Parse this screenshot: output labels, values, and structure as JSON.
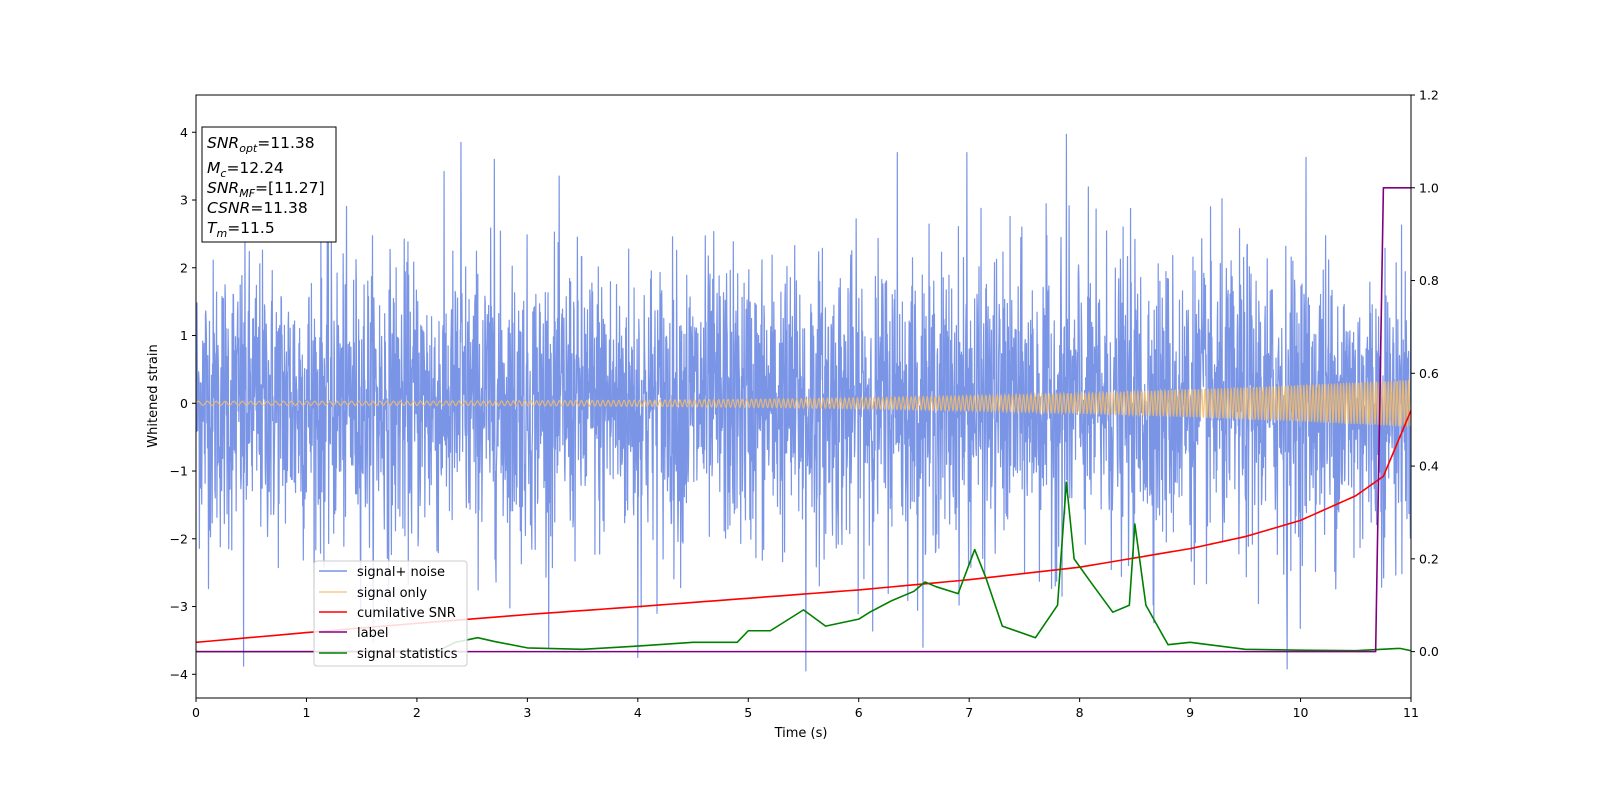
{
  "chart_data": {
    "type": "line",
    "xlabel": "Time (s)",
    "ylabel": "Whitened strain",
    "xlim": [
      0,
      11
    ],
    "ylim_left": [
      -4.35,
      4.55
    ],
    "ylim_right": [
      -0.1,
      1.2
    ],
    "x_ticks": [
      "0",
      "1",
      "2",
      "3",
      "4",
      "5",
      "6",
      "7",
      "8",
      "9",
      "10",
      "11"
    ],
    "y_ticks_left": [
      "4",
      "3",
      "2",
      "1",
      "0",
      "−1",
      "−2",
      "−3",
      "−4"
    ],
    "y_ticks_right": [
      "1.2",
      "1.0",
      "0.8",
      "0.6",
      "0.4",
      "0.2",
      "0.0"
    ],
    "grid": false,
    "legend_position": "lower-left",
    "annotation": {
      "snr_opt": {
        "main": "SNR",
        "sub": "opt",
        "value": "=11.38"
      },
      "mc": {
        "main": "M",
        "sub": "c",
        "value": "=12.24"
      },
      "snr_mf": {
        "main": "SNR",
        "sub": "MF",
        "value": "=[11.27]"
      },
      "csnr": {
        "main": "CSNR",
        "value": "=11.38"
      },
      "tm": {
        "main": "T",
        "sub": "m",
        "value": "=11.5"
      }
    },
    "series": [
      {
        "name": "signal+ noise",
        "axis": "left",
        "color": "#7a94e6",
        "noise_std": 1.0,
        "x_range": [
          0,
          11
        ],
        "extremes": [
          {
            "x": 0.43,
            "y": -3.88
          },
          {
            "x": 2.4,
            "y": 3.85
          },
          {
            "x": 2.7,
            "y": 3.6
          },
          {
            "x": 4.0,
            "y": -3.75
          },
          {
            "x": 5.52,
            "y": -3.95
          },
          {
            "x": 6.35,
            "y": 3.7
          },
          {
            "x": 6.98,
            "y": 3.7
          },
          {
            "x": 7.88,
            "y": 3.97
          },
          {
            "x": 9.88,
            "y": -3.92
          },
          {
            "x": 10.05,
            "y": 3.63
          }
        ]
      },
      {
        "name": "signal only",
        "axis": "left",
        "color": "#f3bd6b",
        "amplitude_start": 0.03,
        "amplitude_end": 0.35,
        "freq_start_hz": 12,
        "freq_end_hz": 25
      },
      {
        "name": "cumilative SNR",
        "axis": "right",
        "color": "#ff0000",
        "points": [
          [
            0,
            0.02
          ],
          [
            1,
            0.041
          ],
          [
            2,
            0.061
          ],
          [
            3,
            0.08
          ],
          [
            4,
            0.097
          ],
          [
            5,
            0.115
          ],
          [
            6,
            0.133
          ],
          [
            7,
            0.155
          ],
          [
            8,
            0.182
          ],
          [
            9,
            0.222
          ],
          [
            9.5,
            0.248
          ],
          [
            10,
            0.283
          ],
          [
            10.5,
            0.336
          ],
          [
            10.75,
            0.378
          ],
          [
            11,
            0.52
          ]
        ]
      },
      {
        "name": "label",
        "axis": "right",
        "color": "#800080",
        "points": [
          [
            0,
            0.0
          ],
          [
            10.68,
            0.0
          ],
          [
            10.75,
            1.0
          ],
          [
            11,
            1.0
          ]
        ]
      },
      {
        "name": "signal statistics",
        "axis": "right",
        "color": "#008000",
        "points": [
          [
            0,
            0.0
          ],
          [
            1.0,
            0.0
          ],
          [
            2.0,
            0.001
          ],
          [
            2.2,
            0.003
          ],
          [
            2.35,
            0.02
          ],
          [
            2.55,
            0.03
          ],
          [
            2.7,
            0.022
          ],
          [
            3.0,
            0.008
          ],
          [
            3.5,
            0.005
          ],
          [
            4.0,
            0.012
          ],
          [
            4.5,
            0.02
          ],
          [
            4.9,
            0.02
          ],
          [
            5.0,
            0.045
          ],
          [
            5.2,
            0.045
          ],
          [
            5.5,
            0.09
          ],
          [
            5.7,
            0.055
          ],
          [
            6.0,
            0.07
          ],
          [
            6.1,
            0.085
          ],
          [
            6.3,
            0.11
          ],
          [
            6.5,
            0.13
          ],
          [
            6.6,
            0.15
          ],
          [
            6.7,
            0.14
          ],
          [
            6.9,
            0.125
          ],
          [
            7.05,
            0.22
          ],
          [
            7.15,
            0.16
          ],
          [
            7.3,
            0.055
          ],
          [
            7.6,
            0.03
          ],
          [
            7.8,
            0.1
          ],
          [
            7.88,
            0.365
          ],
          [
            7.95,
            0.2
          ],
          [
            8.1,
            0.15
          ],
          [
            8.3,
            0.085
          ],
          [
            8.45,
            0.1
          ],
          [
            8.5,
            0.275
          ],
          [
            8.6,
            0.1
          ],
          [
            8.8,
            0.015
          ],
          [
            9.0,
            0.02
          ],
          [
            9.5,
            0.005
          ],
          [
            10.0,
            0.003
          ],
          [
            10.5,
            0.002
          ],
          [
            10.9,
            0.007
          ],
          [
            11.0,
            0.002
          ]
        ]
      }
    ]
  }
}
